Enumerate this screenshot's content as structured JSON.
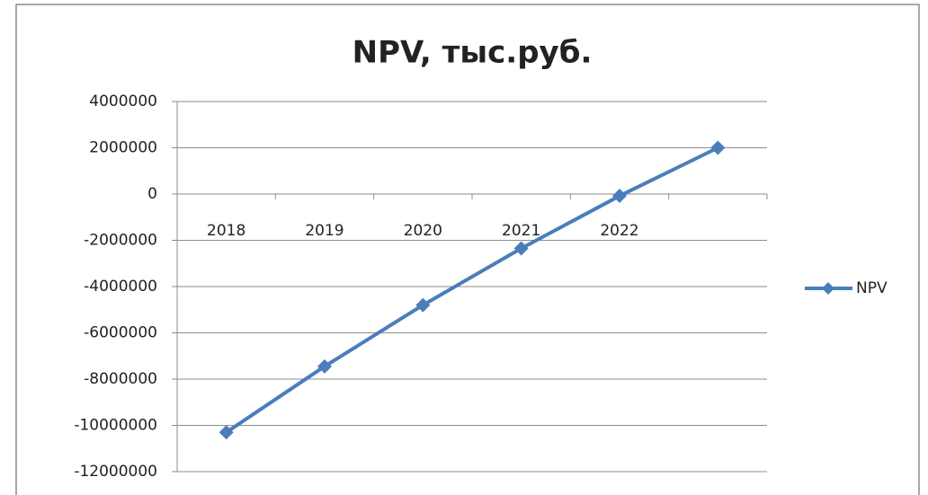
{
  "chart_data": {
    "type": "line",
    "title": "NPV, тыс.руб.",
    "categories": [
      "2018",
      "2019",
      "2020",
      "2021",
      "2022",
      null
    ],
    "series": [
      {
        "name": "NPV",
        "color": "#4a7ebb",
        "values": [
          -10300000,
          -7450000,
          -4800000,
          -2350000,
          -80000,
          2000000
        ]
      }
    ],
    "ylim": [
      -12000000,
      4000000
    ],
    "yticks": [
      -12000000,
      -10000000,
      -8000000,
      -6000000,
      -4000000,
      -2000000,
      0,
      2000000,
      4000000
    ],
    "grid": true,
    "legend": "right"
  }
}
